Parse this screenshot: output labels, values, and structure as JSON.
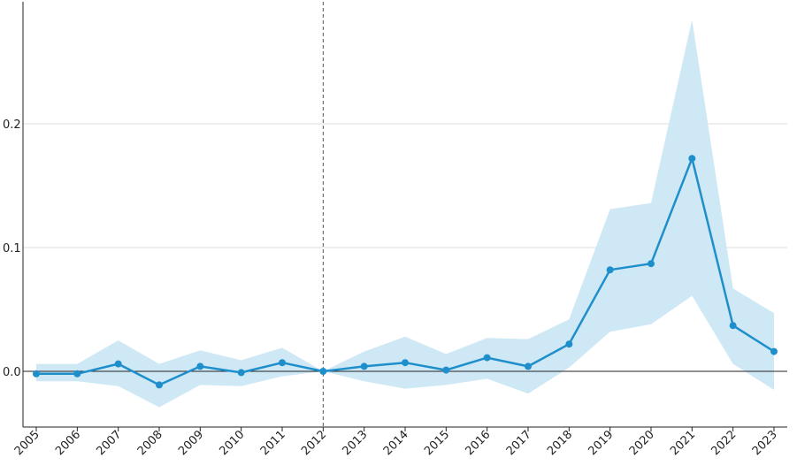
{
  "chart_data": {
    "type": "line",
    "title": "",
    "xlabel": "",
    "ylabel": "",
    "x": [
      "2005",
      "2006",
      "2007",
      "2008",
      "2009",
      "2010",
      "2011",
      "2012",
      "2013",
      "2014",
      "2015",
      "2016",
      "2017",
      "2018",
      "2019",
      "2020",
      "2021",
      "2022",
      "2023"
    ],
    "series": [
      {
        "values": [
          -0.002,
          -0.002,
          0.006,
          -0.011,
          0.004,
          -0.001,
          0.007,
          0.0,
          0.004,
          0.007,
          0.001,
          0.011,
          0.004,
          0.022,
          0.082,
          0.087,
          0.172,
          0.037,
          0.016
        ],
        "ci_lower": [
          -0.008,
          -0.008,
          -0.012,
          -0.029,
          -0.011,
          -0.012,
          -0.004,
          0.0,
          -0.008,
          -0.014,
          -0.011,
          -0.006,
          -0.018,
          0.003,
          0.032,
          0.038,
          0.061,
          0.006,
          -0.015
        ],
        "ci_upper": [
          0.006,
          0.006,
          0.025,
          0.006,
          0.017,
          0.009,
          0.019,
          0.0,
          0.016,
          0.028,
          0.014,
          0.027,
          0.026,
          0.042,
          0.131,
          0.136,
          0.284,
          0.067,
          0.047
        ],
        "color": "#1f8fcc",
        "band_color": "#cfe8f5"
      }
    ],
    "reference_x": "2012",
    "reference_y": 0.0,
    "yticks": [
      0.0,
      0.1,
      0.2
    ],
    "ytick_labels": [
      "0.0",
      "0.1",
      "0.2"
    ],
    "ylim": [
      -0.045,
      0.3
    ],
    "grid": "horizontal",
    "legend": "none"
  }
}
